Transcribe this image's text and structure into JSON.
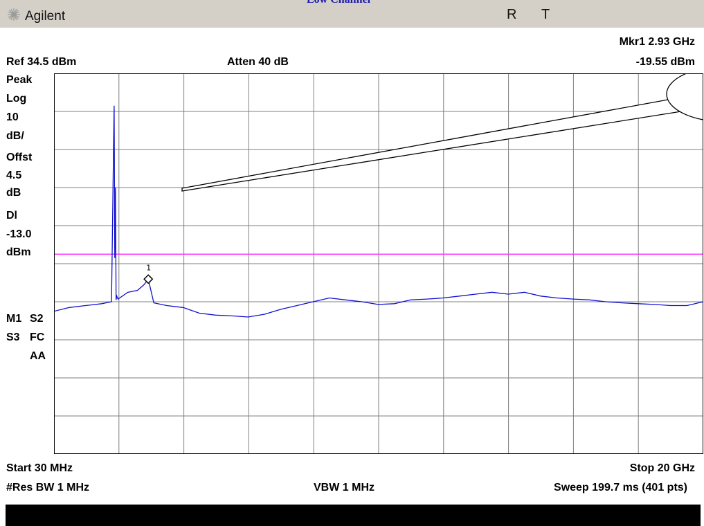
{
  "app": {
    "caption": "Low Channel",
    "brand": "Agilent",
    "status_r": "R",
    "status_t": "T"
  },
  "icons": {
    "brand": "agilent-spark-icon",
    "marker": "marker-diamond-icon"
  },
  "colors": {
    "trace": "#1010d0",
    "display_line": "#ff33ff",
    "grid": "#7f7f7f",
    "caption": "#1a1aa8"
  },
  "header": {
    "ref": "Ref 34.5 dBm",
    "atten": "Atten 40 dB",
    "marker_freq": "Mkr1  2.93 GHz",
    "marker_level": "-19.55 dBm"
  },
  "left_panel": {
    "detector": "Peak",
    "scale_type": "Log",
    "scale_value": "10",
    "scale_unit": "dB/",
    "offset_label": "Offst",
    "offset_value": "4.5",
    "offset_unit": "dB",
    "dl_label": "Dl",
    "dl_value": "-13.0",
    "dl_unit": "dBm",
    "m1": "M1",
    "s2": "S2",
    "s3": "S3",
    "fc": "FC",
    "aa": "AA"
  },
  "footer": {
    "start": "Start 30 MHz",
    "stop": "Stop 20 GHz",
    "rbw": "#Res BW 1 MHz",
    "vbw": "VBW 1 MHz",
    "sweep": "Sweep 199.7 ms (401 pts)"
  },
  "chart_data": {
    "type": "line",
    "title": "Low Channel",
    "xlabel": "",
    "ylabel": "",
    "x_unit": "GHz",
    "y_unit": "dBm",
    "xlim": [
      0.03,
      20.0
    ],
    "ylim": [
      -65.5,
      34.5
    ],
    "grid": true,
    "display_line": -13.0,
    "marker": {
      "label": "1",
      "x": 2.93,
      "y": -19.55
    },
    "series": [
      {
        "x": [
          0.03,
          0.5,
          1.0,
          1.5,
          1.8,
          1.86,
          1.88,
          1.9,
          1.92,
          1.94,
          1.96,
          2.0,
          2.3,
          2.6,
          2.8,
          2.93,
          3.1,
          3.5,
          4.0,
          4.5,
          5.0,
          5.5,
          6.0,
          6.5,
          7.0,
          7.5,
          8.0,
          8.5,
          9.0,
          9.5,
          10.0,
          10.5,
          11.0,
          11.5,
          12.0,
          12.5,
          13.0,
          13.5,
          14.0,
          14.5,
          15.0,
          15.5,
          16.0,
          16.5,
          17.0,
          17.5,
          18.0,
          18.5,
          19.0,
          19.5,
          20.0
        ],
        "y": [
          -28.0,
          -27.0,
          -26.5,
          -26.0,
          -25.5,
          15.0,
          26.0,
          -14.0,
          4.5,
          -25.0,
          -24.0,
          -24.8,
          -23.0,
          -22.5,
          -21.0,
          -19.55,
          -25.8,
          -26.5,
          -27.0,
          -28.5,
          -29.0,
          -29.2,
          -29.5,
          -28.8,
          -27.5,
          -26.5,
          -25.5,
          -24.5,
          -25.0,
          -25.5,
          -26.2,
          -26.0,
          -25.0,
          -24.8,
          -24.5,
          -24.0,
          -23.5,
          -23.0,
          -23.5,
          -23.0,
          -24.0,
          -24.5,
          -24.8,
          -25.0,
          -25.5,
          -25.8,
          -26.0,
          -26.2,
          -26.5,
          -26.5,
          -25.5
        ]
      }
    ]
  }
}
